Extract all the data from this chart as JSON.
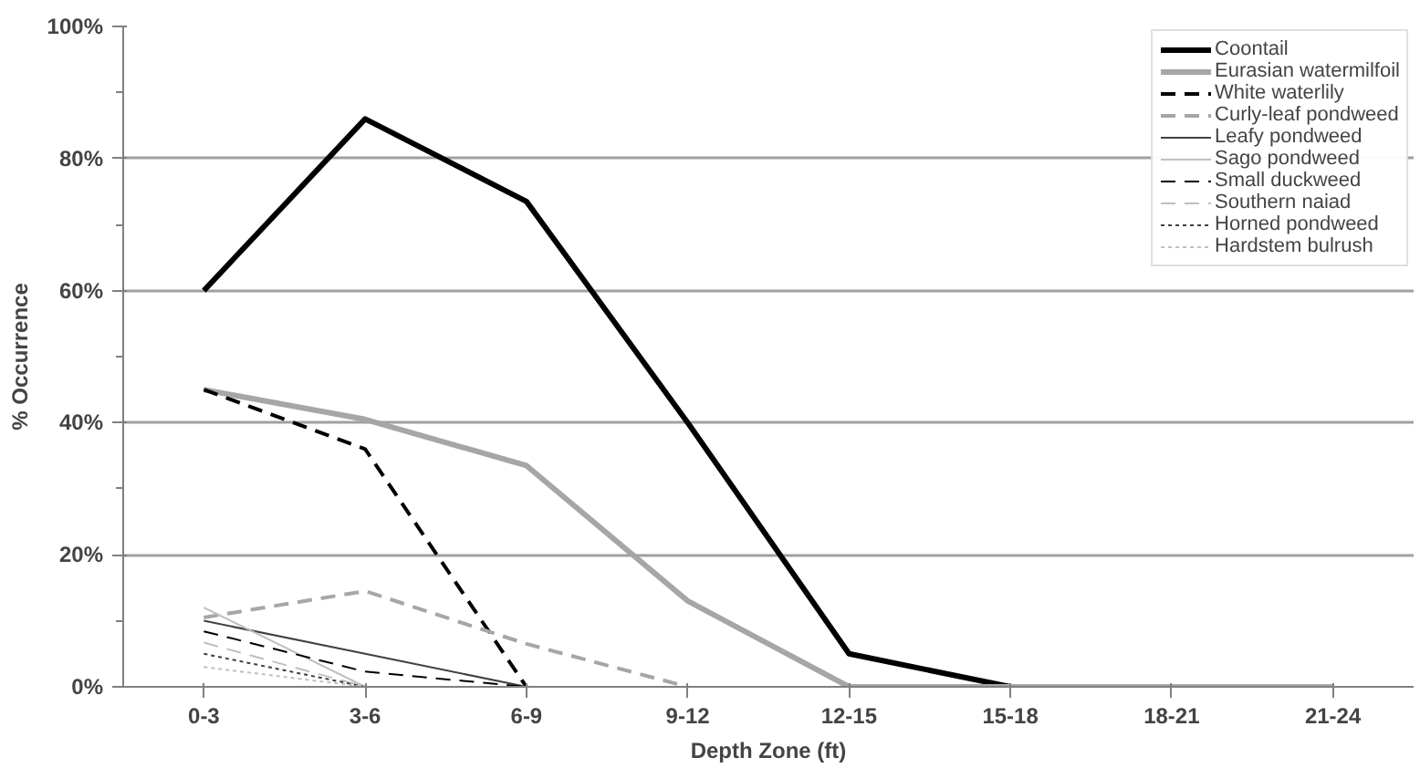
{
  "chart_data": {
    "type": "line",
    "xlabel": "Depth Zone (ft)",
    "ylabel": "% Occurrence",
    "categories": [
      "0-3",
      "3-6",
      "6-9",
      "9-12",
      "12-15",
      "15-18",
      "18-21",
      "21-24"
    ],
    "ylim": [
      0,
      100
    ],
    "yticks": [
      {
        "value": 0,
        "label": "0%"
      },
      {
        "value": 10,
        "label": null
      },
      {
        "value": 20,
        "label": "20%"
      },
      {
        "value": 30,
        "label": null
      },
      {
        "value": 40,
        "label": "40%"
      },
      {
        "value": 50,
        "label": null
      },
      {
        "value": 60,
        "label": "60%"
      },
      {
        "value": 70,
        "label": null
      },
      {
        "value": 80,
        "label": "80%"
      },
      {
        "value": 90,
        "label": null
      },
      {
        "value": 100,
        "label": "100%"
      }
    ],
    "grid": "y",
    "legend": "top right",
    "marker": "none",
    "series": [
      {
        "name": "Coontail",
        "color": "#000000",
        "line_style": "solid",
        "values": [
          60,
          86,
          73.5,
          40,
          5,
          0,
          0,
          0
        ]
      },
      {
        "name": "Eurasian watermilfoil",
        "color": "#a6a6a6",
        "line_style": "solid",
        "values": [
          45,
          40.5,
          33.5,
          13,
          0,
          0,
          0,
          0
        ]
      },
      {
        "name": "White waterlily",
        "color": "#000000",
        "line_style": "dashed",
        "values": [
          45,
          36,
          0,
          null,
          null,
          null,
          null,
          null
        ]
      },
      {
        "name": "Curly-leaf pondweed",
        "color": "#a6a6a6",
        "line_style": "dashed",
        "values": [
          10.5,
          14.5,
          6.5,
          0,
          null,
          null,
          null,
          null
        ]
      },
      {
        "name": "Leafy pondweed",
        "color": "#404040",
        "line_style": "solid",
        "values": [
          10,
          5,
          0,
          null,
          null,
          null,
          null,
          null
        ]
      },
      {
        "name": "Sago pondweed",
        "color": "#bfbfbf",
        "line_style": "solid",
        "values": [
          12,
          0,
          null,
          null,
          null,
          null,
          null,
          null
        ]
      },
      {
        "name": "Small duckweed",
        "color": "#000000",
        "line_style": "dashed",
        "values": [
          8.4,
          2.3,
          0,
          null,
          null,
          null,
          null,
          null
        ]
      },
      {
        "name": "Southern naiad",
        "color": "#bfbfbf",
        "line_style": "dashed",
        "values": [
          6.7,
          0,
          null,
          null,
          null,
          null,
          null,
          null
        ]
      },
      {
        "name": "Horned pondweed",
        "color": "#404040",
        "line_style": "dotted",
        "values": [
          5,
          0,
          null,
          null,
          null,
          null,
          null,
          null
        ]
      },
      {
        "name": "Hardstem bulrush",
        "color": "#bfbfbf",
        "line_style": "dotted",
        "values": [
          3,
          0,
          null,
          null,
          null,
          null,
          null,
          null
        ]
      }
    ]
  }
}
